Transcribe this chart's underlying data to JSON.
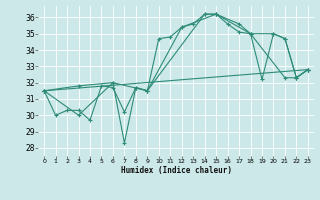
{
  "xlabel": "Humidex (Indice chaleur)",
  "ylabel": "",
  "bg_color": "#cce8e8",
  "grid_color": "#ffffff",
  "line_color": "#2d8b78",
  "xlim": [
    -0.5,
    23.5
  ],
  "ylim": [
    27.5,
    36.7
  ],
  "xticks": [
    0,
    1,
    2,
    3,
    4,
    5,
    6,
    7,
    8,
    9,
    10,
    11,
    12,
    13,
    14,
    15,
    16,
    17,
    18,
    19,
    20,
    21,
    22,
    23
  ],
  "yticks": [
    28,
    29,
    30,
    31,
    32,
    33,
    34,
    35,
    36
  ],
  "series": [
    {
      "x": [
        0,
        1,
        2,
        3,
        4,
        5,
        6,
        7,
        8,
        9,
        10,
        11,
        12,
        13,
        14,
        15,
        16,
        17,
        18,
        19,
        20,
        21,
        22,
        23
      ],
      "y": [
        31.5,
        30.0,
        30.3,
        30.3,
        29.7,
        31.8,
        31.7,
        30.2,
        31.7,
        31.5,
        34.7,
        34.8,
        35.4,
        35.6,
        36.2,
        36.2,
        35.6,
        35.1,
        35.0,
        32.2,
        35.0,
        34.7,
        32.3,
        32.8
      ]
    },
    {
      "x": [
        0,
        3,
        6,
        9,
        12,
        15,
        18,
        21,
        22,
        23
      ],
      "y": [
        31.5,
        30.0,
        32.0,
        31.5,
        35.4,
        36.2,
        35.0,
        32.3,
        32.3,
        32.8
      ]
    },
    {
      "x": [
        0,
        3,
        6,
        7,
        8,
        9,
        14,
        15,
        17,
        18,
        20,
        21,
        22,
        23
      ],
      "y": [
        31.5,
        31.8,
        32.0,
        28.3,
        31.7,
        31.5,
        36.2,
        36.2,
        35.6,
        35.0,
        35.0,
        34.7,
        32.3,
        32.8
      ]
    },
    {
      "x": [
        0,
        23
      ],
      "y": [
        31.5,
        32.8
      ]
    }
  ]
}
